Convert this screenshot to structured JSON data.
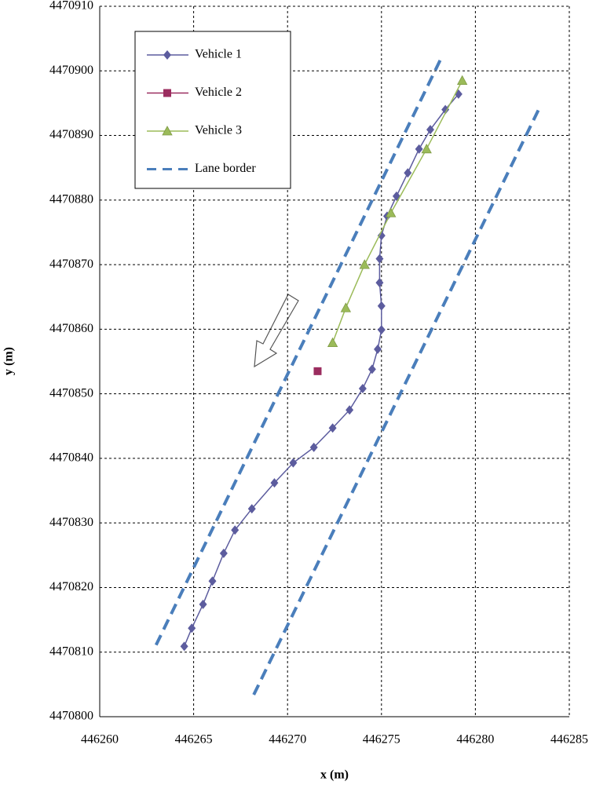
{
  "chart_data": {
    "type": "line",
    "x_label": "x (m)",
    "y_label": "y (m)",
    "xlim": [
      446260,
      446285
    ],
    "xticks": [
      446260,
      446265,
      446270,
      446275,
      446280,
      446285
    ],
    "ylim": [
      4470800,
      4470910
    ],
    "yticks": [
      4470800,
      4470810,
      4470820,
      4470830,
      4470840,
      4470850,
      4470860,
      4470870,
      4470880,
      4470890,
      4470900,
      4470910
    ],
    "grid": true,
    "series": [
      {
        "name": "Vehicle 1",
        "color": "#5c5c9e",
        "marker": "diamond",
        "x": [
          446264.5,
          446264.9,
          446265.5,
          446266.0,
          446266.6,
          446267.2,
          446268.1,
          446269.3,
          446270.3,
          446271.4,
          446272.4,
          446273.3,
          446274.0,
          446274.5,
          446274.8,
          446275.0,
          446275.0,
          446274.9,
          446274.9,
          446275.0,
          446275.3,
          446275.8,
          446276.4,
          446277.0,
          446277.6,
          446278.4,
          446279.1
        ],
        "values": [
          4470810.9,
          4470813.7,
          4470817.4,
          4470821.0,
          4470825.3,
          4470828.9,
          4470832.2,
          4470836.2,
          4470839.3,
          4470841.7,
          4470844.7,
          4470847.5,
          4470850.8,
          4470853.8,
          4470856.9,
          4470859.9,
          4470863.6,
          4470867.2,
          4470870.9,
          4470874.5,
          4470877.5,
          4470880.6,
          4470884.2,
          4470887.9,
          4470890.9,
          4470894.0,
          4470896.4
        ]
      },
      {
        "name": "Vehicle 2",
        "color": "#9b2d5f",
        "marker": "square",
        "x": [
          446271.6
        ],
        "values": [
          4470853.5
        ]
      },
      {
        "name": "Vehicle 3",
        "color": "#9bbb59",
        "marker": "triangle",
        "x": [
          446272.4,
          446273.1,
          446274.1,
          446275.5,
          446277.4,
          446279.3
        ],
        "values": [
          4470857.9,
          4470863.3,
          4470870.0,
          4470878.0,
          4470887.9,
          4470898.5
        ]
      },
      {
        "name": "Lane border",
        "color": "#4a7ebb",
        "dashed": true,
        "x": [
          446263.0,
          446278.2,
          null,
          446268.2,
          446283.4
        ],
        "values": [
          4470811.1,
          4470902.1,
          null,
          4470803.4,
          4470894.2
        ]
      }
    ]
  }
}
